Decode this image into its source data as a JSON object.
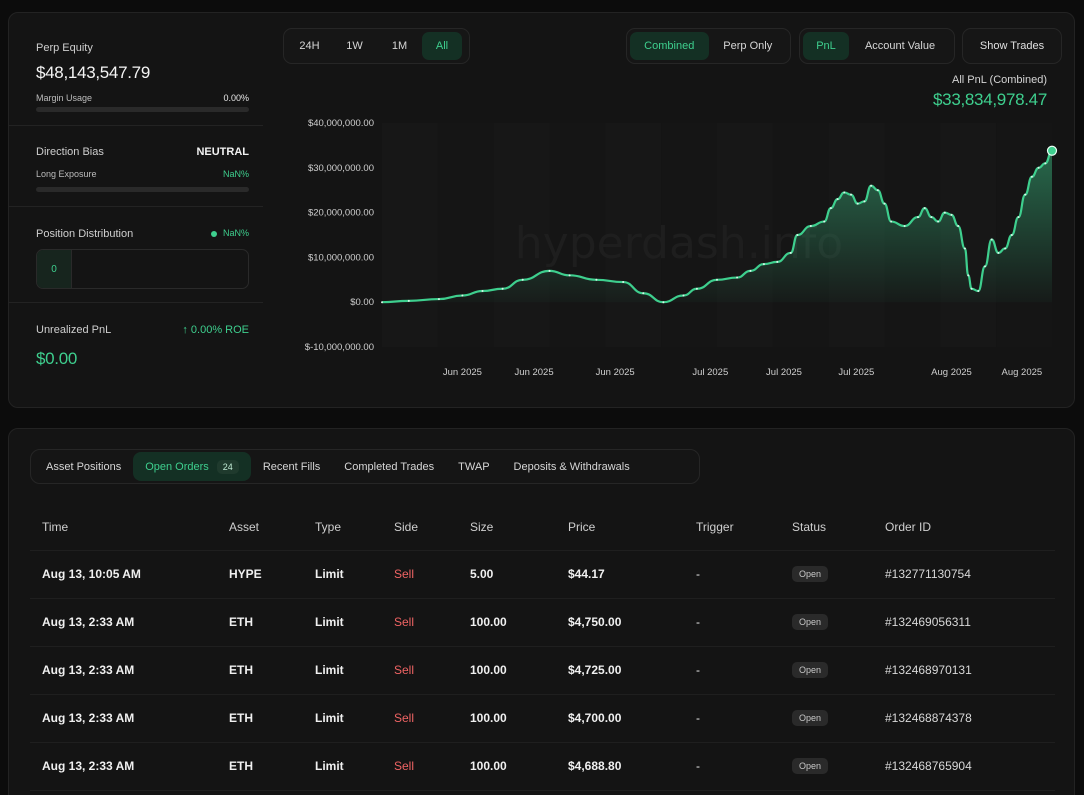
{
  "summary": {
    "perp_equity_label": "Perp Equity",
    "perp_equity_value": "$48,143,547.79",
    "margin_usage_label": "Margin Usage",
    "margin_usage_value": "0.00%",
    "direction_bias_label": "Direction Bias",
    "direction_bias_value": "NEUTRAL",
    "long_exposure_label": "Long Exposure",
    "long_exposure_value": "NaN%",
    "position_distribution_label": "Position Distribution",
    "position_distribution_value": "NaN%",
    "position_distribution_count": "0",
    "unrealized_pnl_label": "Unrealized PnL",
    "unrealized_pnl_roe": "0.00% ROE",
    "unrealized_pnl_value": "$0.00"
  },
  "controls": {
    "timeframes": [
      "24H",
      "1W",
      "1M",
      "All"
    ],
    "active_timeframe": "All",
    "scope": [
      "Combined",
      "Perp Only"
    ],
    "active_scope": "Combined",
    "metric": [
      "PnL",
      "Account Value"
    ],
    "active_metric": "PnL",
    "show_trades_label": "Show Trades"
  },
  "pnl_header": {
    "title": "All PnL (Combined)",
    "value": "$33,834,978.47"
  },
  "watermark": "hyperdash.info",
  "colors": {
    "accent": "#3ecf8e",
    "sell": "#f06464",
    "background": "#141414"
  },
  "chart_data": {
    "type": "area",
    "title": "All PnL (Combined)",
    "ylim": [
      -10000000,
      40000000
    ],
    "y_ticks": [
      40000000,
      30000000,
      20000000,
      10000000,
      0,
      -10000000
    ],
    "y_tick_labels": [
      "$40,000,000.00",
      "$30,000,000.00",
      "$20,000,000.00",
      "$10,000,000.00",
      "$0.00",
      "$-10,000,000.00"
    ],
    "x_tick_labels": [
      "Jun 2025",
      "Jun 2025",
      "Jun 2025",
      "Jul 2025",
      "Jul 2025",
      "Jul 2025",
      "Aug 2025",
      "Aug 2025"
    ],
    "x_tick_positions": [
      0.12,
      0.227,
      0.348,
      0.49,
      0.6,
      0.708,
      0.85,
      0.955
    ],
    "x": [
      0,
      0.04,
      0.085,
      0.12,
      0.15,
      0.18,
      0.21,
      0.25,
      0.28,
      0.32,
      0.36,
      0.39,
      0.42,
      0.45,
      0.47,
      0.5,
      0.53,
      0.55,
      0.57,
      0.59,
      0.61,
      0.62,
      0.64,
      0.66,
      0.67,
      0.68,
      0.69,
      0.7,
      0.71,
      0.72,
      0.73,
      0.74,
      0.75,
      0.76,
      0.78,
      0.8,
      0.81,
      0.82,
      0.83,
      0.84,
      0.85,
      0.86,
      0.87,
      0.875,
      0.88,
      0.89,
      0.9,
      0.91,
      0.92,
      0.93,
      0.94,
      0.95,
      0.96,
      0.97,
      0.98,
      0.99,
      1.0
    ],
    "y": [
      0,
      300000,
      700000,
      1500000,
      2500000,
      3000000,
      5000000,
      7000000,
      6000000,
      5000000,
      4500000,
      2000000,
      0,
      1500000,
      3000000,
      5000000,
      5500000,
      7000000,
      8500000,
      9000000,
      11000000,
      15000000,
      17000000,
      18000000,
      21000000,
      23000000,
      24500000,
      24000000,
      22000000,
      22500000,
      26000000,
      25000000,
      22000000,
      18000000,
      17000000,
      19000000,
      21000000,
      19000000,
      18000000,
      20000000,
      19500000,
      17000000,
      12000000,
      6000000,
      3000000,
      2500000,
      8000000,
      14000000,
      11000000,
      12000000,
      15000000,
      19000000,
      24000000,
      28000000,
      30000000,
      31000000,
      33800000
    ]
  },
  "orders": {
    "tabs": [
      "Asset Positions",
      "Open Orders",
      "Recent Fills",
      "Completed Trades",
      "TWAP",
      "Deposits & Withdrawals"
    ],
    "active_tab": "Open Orders",
    "open_orders_count": "24",
    "columns": [
      "Time",
      "Asset",
      "Type",
      "Side",
      "Size",
      "Price",
      "Trigger",
      "Status",
      "Order ID"
    ],
    "rows": [
      [
        "Aug 13, 10:05 AM",
        "HYPE",
        "Limit",
        "Sell",
        "5.00",
        "$44.17",
        "-",
        "Open",
        "#132771130754"
      ],
      [
        "Aug 13, 2:33 AM",
        "ETH",
        "Limit",
        "Sell",
        "100.00",
        "$4,750.00",
        "-",
        "Open",
        "#132469056311"
      ],
      [
        "Aug 13, 2:33 AM",
        "ETH",
        "Limit",
        "Sell",
        "100.00",
        "$4,725.00",
        "-",
        "Open",
        "#132468970131"
      ],
      [
        "Aug 13, 2:33 AM",
        "ETH",
        "Limit",
        "Sell",
        "100.00",
        "$4,700.00",
        "-",
        "Open",
        "#132468874378"
      ],
      [
        "Aug 13, 2:33 AM",
        "ETH",
        "Limit",
        "Sell",
        "100.00",
        "$4,688.80",
        "-",
        "Open",
        "#132468765904"
      ]
    ]
  }
}
